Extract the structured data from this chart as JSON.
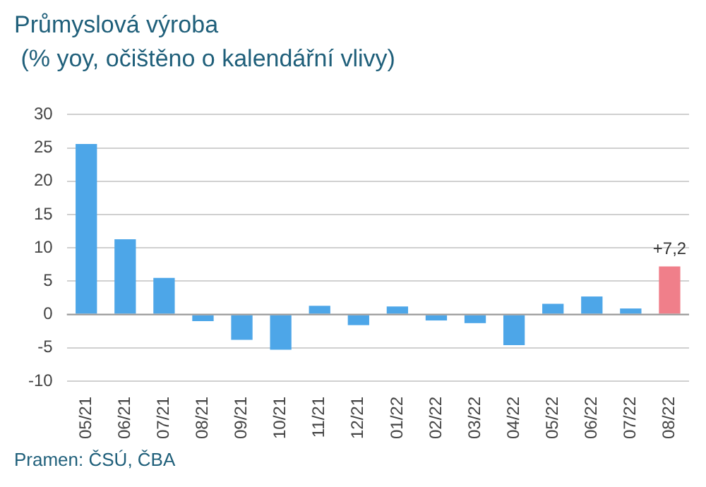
{
  "chart_data": {
    "type": "bar",
    "title": "Průmyslová výroba",
    "subtitle": " (% yoy, očištěno o kalendářní vlivy)",
    "categories": [
      "05/21",
      "06/21",
      "07/21",
      "08/21",
      "09/21",
      "10/21",
      "11/21",
      "12/21",
      "01/22",
      "02/22",
      "03/22",
      "04/22",
      "05/22",
      "06/22",
      "07/22",
      "08/22"
    ],
    "values": [
      25.6,
      11.3,
      5.5,
      -1.0,
      -3.8,
      -5.3,
      1.3,
      -1.6,
      1.2,
      -0.9,
      -1.3,
      -4.6,
      1.6,
      2.7,
      0.9,
      7.2
    ],
    "colors": [
      "#4da6e8",
      "#4da6e8",
      "#4da6e8",
      "#4da6e8",
      "#4da6e8",
      "#4da6e8",
      "#4da6e8",
      "#4da6e8",
      "#4da6e8",
      "#4da6e8",
      "#4da6e8",
      "#4da6e8",
      "#4da6e8",
      "#4da6e8",
      "#4da6e8",
      "#f07f8a"
    ],
    "value_labels": [
      null,
      null,
      null,
      null,
      null,
      null,
      null,
      null,
      null,
      null,
      null,
      null,
      null,
      null,
      null,
      "+7,2"
    ],
    "ylim": [
      -10,
      30
    ],
    "yticks": [
      -10,
      -5,
      0,
      5,
      10,
      15,
      20,
      25,
      30
    ],
    "grid": "y",
    "legend": false,
    "annotations": [
      "Pramen: ČSÚ, ČBA"
    ]
  }
}
